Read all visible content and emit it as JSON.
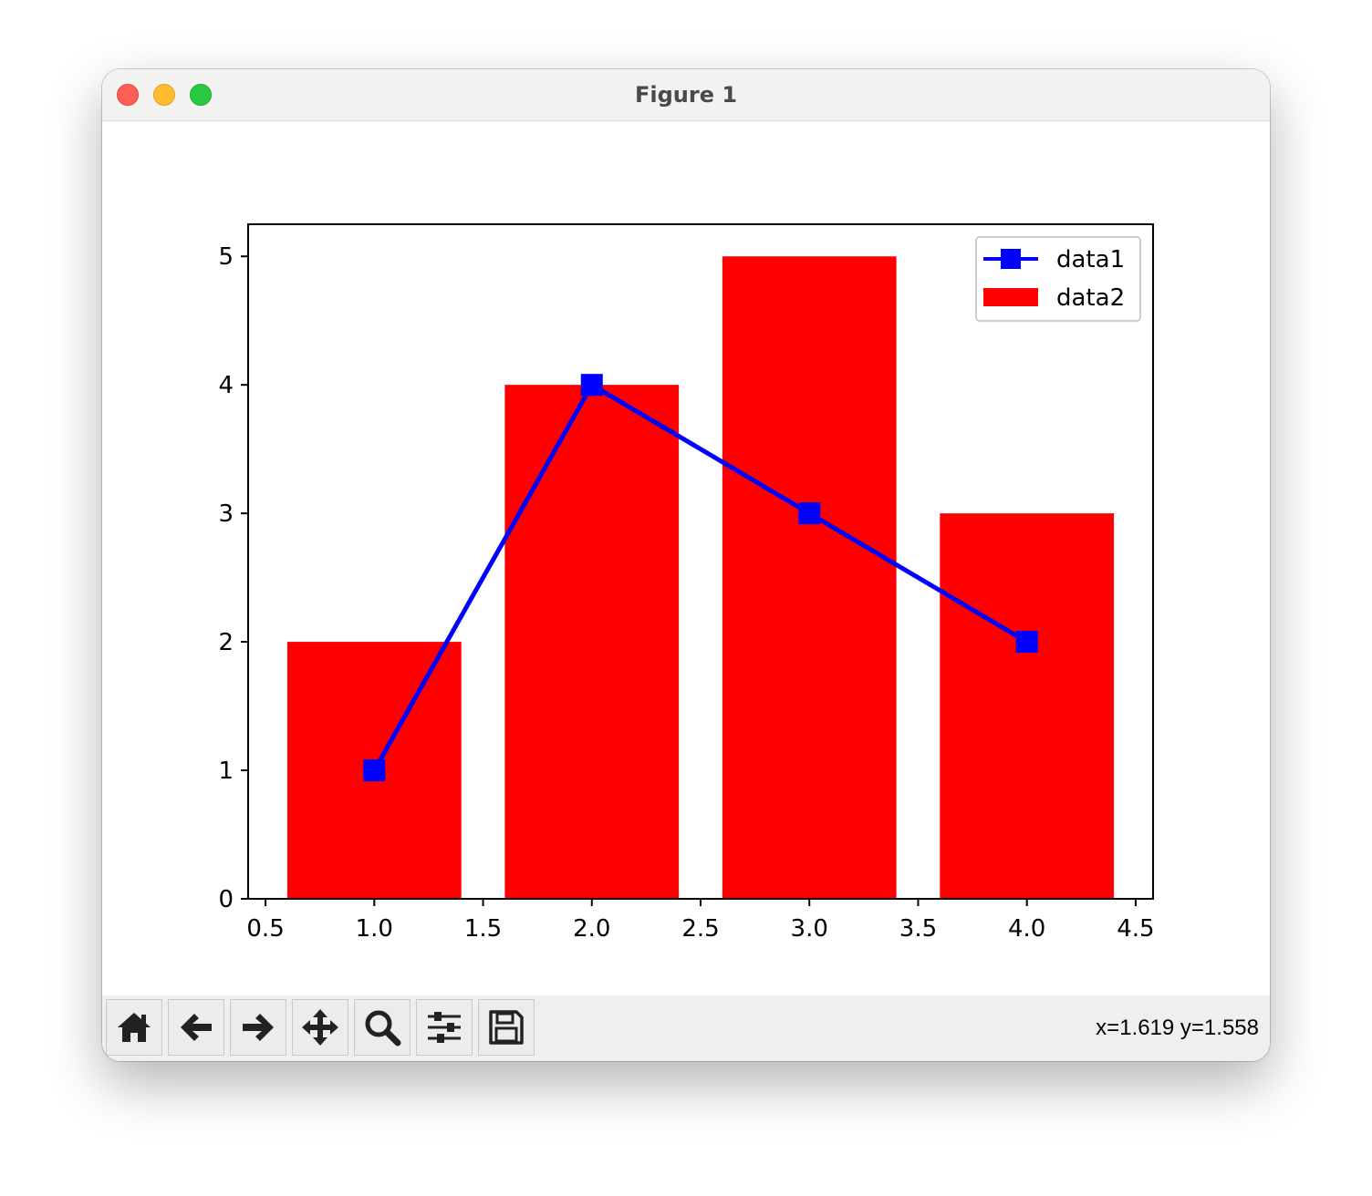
{
  "window": {
    "title": "Figure 1"
  },
  "toolbar": {
    "buttons": [
      {
        "name": "home-button",
        "icon": "home-icon"
      },
      {
        "name": "back-button",
        "icon": "arrow-left-icon"
      },
      {
        "name": "forward-button",
        "icon": "arrow-right-icon"
      },
      {
        "name": "pan-button",
        "icon": "move-icon"
      },
      {
        "name": "zoom-button",
        "icon": "magnifier-icon"
      },
      {
        "name": "configure-subplots-button",
        "icon": "sliders-icon"
      },
      {
        "name": "save-button",
        "icon": "floppy-disk-icon"
      }
    ],
    "coords": "x=1.619 y=1.558"
  },
  "chart_data": {
    "type": "bar",
    "title": "",
    "xlabel": "",
    "ylabel": "",
    "xlim": [
      0.42,
      4.58
    ],
    "ylim": [
      0,
      5.25
    ],
    "xticks": [
      "0.5",
      "1.0",
      "1.5",
      "2.0",
      "2.5",
      "3.0",
      "3.5",
      "4.0",
      "4.5"
    ],
    "xtick_values": [
      0.5,
      1.0,
      1.5,
      2.0,
      2.5,
      3.0,
      3.5,
      4.0,
      4.5
    ],
    "yticks": [
      "0",
      "1",
      "2",
      "3",
      "4",
      "5"
    ],
    "ytick_values": [
      0,
      1,
      2,
      3,
      4,
      5
    ],
    "grid": false,
    "legend_position": "top-right",
    "series": [
      {
        "name": "data1",
        "type": "line",
        "marker": "square",
        "color": "#0000ff",
        "x": [
          1,
          2,
          3,
          4
        ],
        "y": [
          1,
          4,
          3,
          2
        ]
      },
      {
        "name": "data2",
        "type": "bar",
        "color": "#ff0000",
        "bar_width": 0.8,
        "x": [
          1,
          2,
          3,
          4
        ],
        "y": [
          2,
          4,
          5,
          3
        ]
      }
    ]
  }
}
